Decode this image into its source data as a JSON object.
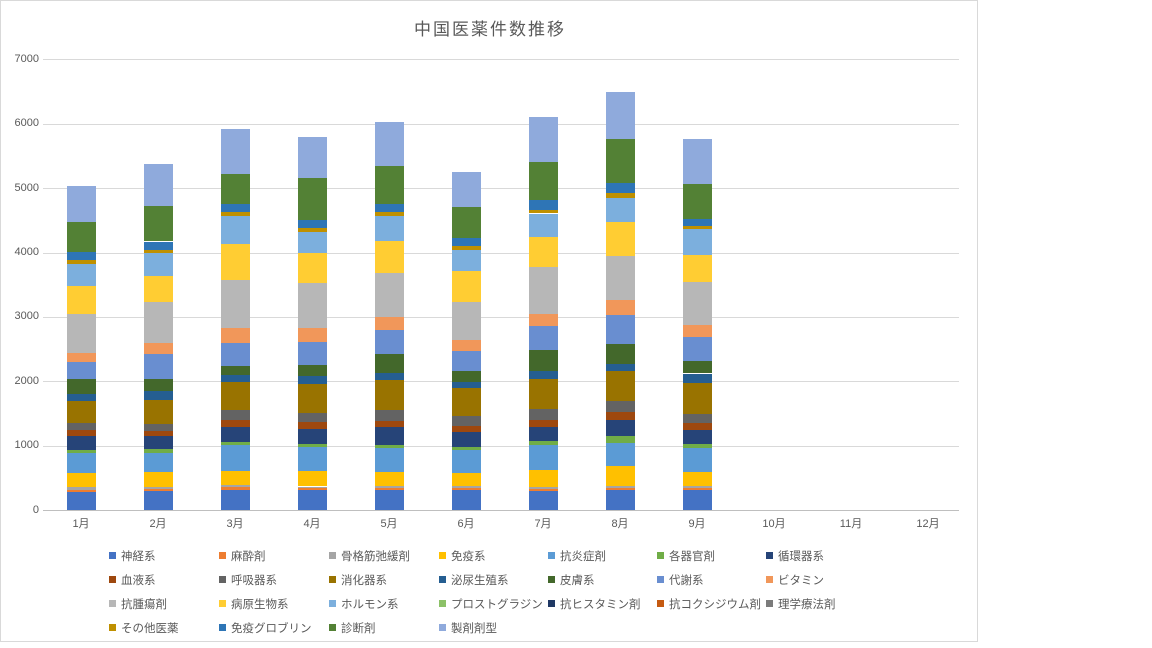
{
  "chart_data": {
    "type": "bar",
    "variant": "stacked-column",
    "title": "中国医薬件数推移",
    "xlabel": "",
    "ylabel": "",
    "ylim": [
      0,
      7000
    ],
    "ytick_step": 1000,
    "yticks": [
      0,
      1000,
      2000,
      3000,
      4000,
      5000,
      6000,
      7000
    ],
    "grid": "horizontal",
    "legend_position": "bottom",
    "categories": [
      "1月",
      "2月",
      "3月",
      "4月",
      "5月",
      "6月",
      "7月",
      "8月",
      "9月",
      "10月",
      "11月",
      "12月"
    ],
    "monthly_totals": [
      5030,
      5380,
      5925,
      5795,
      6030,
      5250,
      6100,
      6485,
      5760,
      0,
      0,
      0
    ],
    "series": [
      {
        "name": "神経系",
        "color": "#4472C4",
        "values": [
          285,
          300,
          310,
          310,
          315,
          315,
          300,
          315,
          315,
          0,
          0,
          0
        ]
      },
      {
        "name": "麻酔剤",
        "color": "#ED7D31",
        "values": [
          30,
          25,
          40,
          25,
          30,
          25,
          25,
          20,
          20,
          0,
          0,
          0
        ]
      },
      {
        "name": "骨格筋弛緩剤",
        "color": "#A5A5A5",
        "values": [
          35,
          25,
          35,
          30,
          30,
          35,
          35,
          40,
          40,
          0,
          0,
          0
        ]
      },
      {
        "name": "免疫系",
        "color": "#FFC000",
        "values": [
          230,
          235,
          220,
          235,
          215,
          205,
          260,
          310,
          220,
          0,
          0,
          0
        ]
      },
      {
        "name": "抗炎症剤",
        "color": "#5B9BD5",
        "values": [
          310,
          300,
          400,
          375,
          375,
          350,
          385,
          350,
          375,
          0,
          0,
          0
        ]
      },
      {
        "name": "各器官剤",
        "color": "#70AD47",
        "values": [
          40,
          60,
          50,
          50,
          50,
          50,
          65,
          115,
          50,
          0,
          0,
          0
        ]
      },
      {
        "name": "循環器系",
        "color": "#264478",
        "values": [
          225,
          205,
          235,
          235,
          275,
          225,
          220,
          250,
          230,
          0,
          0,
          0
        ]
      },
      {
        "name": "血液系",
        "color": "#9E480E",
        "values": [
          95,
          70,
          105,
          100,
          90,
          105,
          105,
          115,
          95,
          0,
          0,
          0
        ]
      },
      {
        "name": "呼吸器系",
        "color": "#636363",
        "values": [
          105,
          115,
          155,
          145,
          180,
          145,
          175,
          180,
          145,
          0,
          0,
          0
        ]
      },
      {
        "name": "消化器系",
        "color": "#997300",
        "values": [
          335,
          380,
          435,
          455,
          455,
          440,
          465,
          465,
          480,
          0,
          0,
          0
        ]
      },
      {
        "name": "泌尿生殖系",
        "color": "#255E91",
        "values": [
          105,
          135,
          105,
          115,
          115,
          90,
          120,
          110,
          150,
          0,
          0,
          0
        ]
      },
      {
        "name": "皮膚系",
        "color": "#43682B",
        "values": [
          235,
          190,
          150,
          180,
          295,
          180,
          335,
          310,
          190,
          0,
          0,
          0
        ]
      },
      {
        "name": "代謝系",
        "color": "#698ED0",
        "values": [
          265,
          390,
          360,
          360,
          370,
          310,
          375,
          445,
          380,
          0,
          0,
          0
        ]
      },
      {
        "name": "ビタミン",
        "color": "#F1975A",
        "values": [
          145,
          165,
          225,
          205,
          195,
          170,
          185,
          230,
          190,
          0,
          0,
          0
        ]
      },
      {
        "name": "抗腫瘍剤",
        "color": "#B7B7B7",
        "values": [
          610,
          630,
          750,
          700,
          695,
          585,
          725,
          690,
          655,
          0,
          0,
          0
        ]
      },
      {
        "name": "病原生物系",
        "color": "#FFCD33",
        "values": [
          435,
          415,
          555,
          475,
          495,
          485,
          465,
          535,
          430,
          0,
          0,
          0
        ]
      },
      {
        "name": "ホルモン系",
        "color": "#7CAFDD",
        "values": [
          340,
          350,
          440,
          325,
          380,
          325,
          365,
          360,
          395,
          0,
          0,
          0
        ]
      },
      {
        "name": "プロストグラジン",
        "color": "#8CC168",
        "values": [
          0,
          0,
          0,
          0,
          0,
          0,
          0,
          0,
          0,
          0,
          0,
          0
        ]
      },
      {
        "name": "抗ヒスタミン剤",
        "color": "#1F3864",
        "values": [
          0,
          0,
          0,
          0,
          0,
          0,
          0,
          0,
          0,
          0,
          0,
          0
        ]
      },
      {
        "name": "抗コクシジウム剤",
        "color": "#C55A11",
        "values": [
          0,
          0,
          0,
          0,
          0,
          0,
          0,
          0,
          0,
          0,
          0,
          0
        ]
      },
      {
        "name": "理学療法剤",
        "color": "#7B7B7B",
        "values": [
          0,
          0,
          0,
          0,
          0,
          0,
          0,
          0,
          0,
          0,
          0,
          0
        ]
      },
      {
        "name": "その他医薬",
        "color": "#BF9000",
        "values": [
          55,
          55,
          65,
          60,
          65,
          65,
          60,
          85,
          55,
          0,
          0,
          0
        ]
      },
      {
        "name": "免疫グロブリン",
        "color": "#2E75B6",
        "values": [
          125,
          125,
          125,
          130,
          130,
          125,
          155,
          155,
          100,
          0,
          0,
          0
        ]
      },
      {
        "name": "診断剤",
        "color": "#538135",
        "values": [
          465,
          545,
          465,
          645,
          585,
          475,
          585,
          680,
          545,
          0,
          0,
          0
        ]
      },
      {
        "name": "製剤剤型",
        "color": "#8FAADC",
        "values": [
          560,
          665,
          700,
          640,
          690,
          545,
          695,
          725,
          700,
          0,
          0,
          0
        ]
      }
    ]
  }
}
